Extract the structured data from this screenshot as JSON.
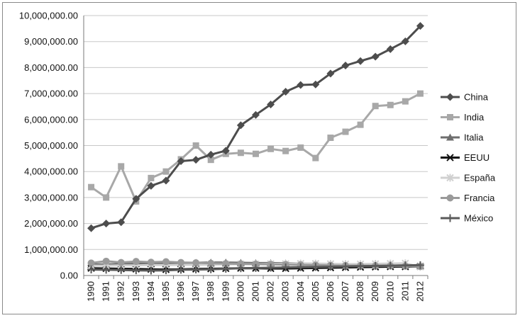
{
  "chart_data": {
    "type": "line",
    "title": "",
    "xlabel": "",
    "ylabel": "",
    "ylim": [
      0,
      10000000
    ],
    "yticks": [
      0,
      1000000,
      2000000,
      3000000,
      4000000,
      5000000,
      6000000,
      7000000,
      8000000,
      9000000,
      10000000
    ],
    "ytick_labels": [
      "0.00",
      "1,000,000.00",
      "2,000,000.00",
      "3,000,000.00",
      "4,000,000.00",
      "5,000,000.00",
      "6,000,000.00",
      "7,000,000.00",
      "8,000,000.00",
      "9,000,000.00",
      "10,000,000.00"
    ],
    "categories": [
      "1990",
      "1991",
      "1992",
      "1993",
      "1994",
      "1995",
      "1996",
      "1997",
      "1998",
      "1999",
      "2000",
      "2001",
      "2002",
      "2003",
      "2004",
      "2005",
      "2006",
      "2007",
      "2008",
      "2009",
      "2010",
      "2011",
      "2012"
    ],
    "grid": "horizontal",
    "legend_position": "right",
    "series": [
      {
        "name": "China",
        "color": "#4d4d4d",
        "marker": "diamond",
        "values": [
          1820000,
          2000000,
          2050000,
          2950000,
          3450000,
          3650000,
          4400000,
          4450000,
          4650000,
          4800000,
          5780000,
          6180000,
          6580000,
          7070000,
          7330000,
          7350000,
          7770000,
          8080000,
          8250000,
          8420000,
          8710000,
          9010000,
          9600000
        ]
      },
      {
        "name": "India",
        "color": "#a8a8a8",
        "marker": "square",
        "values": [
          3400000,
          3000000,
          4200000,
          2850000,
          3750000,
          4000000,
          4470000,
          5000000,
          4450000,
          4680000,
          4720000,
          4680000,
          4870000,
          4790000,
          4920000,
          4520000,
          5300000,
          5530000,
          5800000,
          6520000,
          6560000,
          6700000,
          7000000
        ]
      },
      {
        "name": "Italia",
        "color": "#6e6e6e",
        "marker": "triangle",
        "values": [
          420000,
          430000,
          440000,
          450000,
          460000,
          470000,
          480000,
          490000,
          500000,
          500000,
          490000,
          480000,
          480000,
          470000,
          460000,
          450000,
          440000,
          430000,
          420000,
          410000,
          400000,
          400000,
          390000
        ]
      },
      {
        "name": "EEUU",
        "color": "#111111",
        "marker": "x",
        "values": [
          280000,
          270000,
          260000,
          250000,
          240000,
          230000,
          240000,
          250000,
          260000,
          270000,
          280000,
          280000,
          270000,
          270000,
          280000,
          290000,
          300000,
          310000,
          320000,
          330000,
          340000,
          340000,
          350000
        ]
      },
      {
        "name": "España",
        "color": "#d0d0d0",
        "marker": "star",
        "values": [
          380000,
          380000,
          390000,
          390000,
          400000,
          400000,
          410000,
          410000,
          420000,
          430000,
          440000,
          440000,
          450000,
          450000,
          460000,
          460000,
          450000,
          440000,
          440000,
          450000,
          460000,
          470000,
          330000
        ]
      },
      {
        "name": "Francia",
        "color": "#9a9a9a",
        "marker": "circle",
        "values": [
          480000,
          550000,
          500000,
          540000,
          510000,
          530000,
          500000,
          490000,
          470000,
          460000,
          450000,
          440000,
          430000,
          420000,
          410000,
          400000,
          390000,
          380000,
          380000,
          370000,
          370000,
          360000,
          350000
        ]
      },
      {
        "name": "México",
        "color": "#5a5a5a",
        "marker": "plus",
        "values": [
          230000,
          220000,
          210000,
          200000,
          190000,
          200000,
          220000,
          230000,
          240000,
          260000,
          280000,
          290000,
          300000,
          310000,
          320000,
          330000,
          340000,
          350000,
          360000,
          370000,
          380000,
          390000,
          400000
        ]
      }
    ]
  }
}
